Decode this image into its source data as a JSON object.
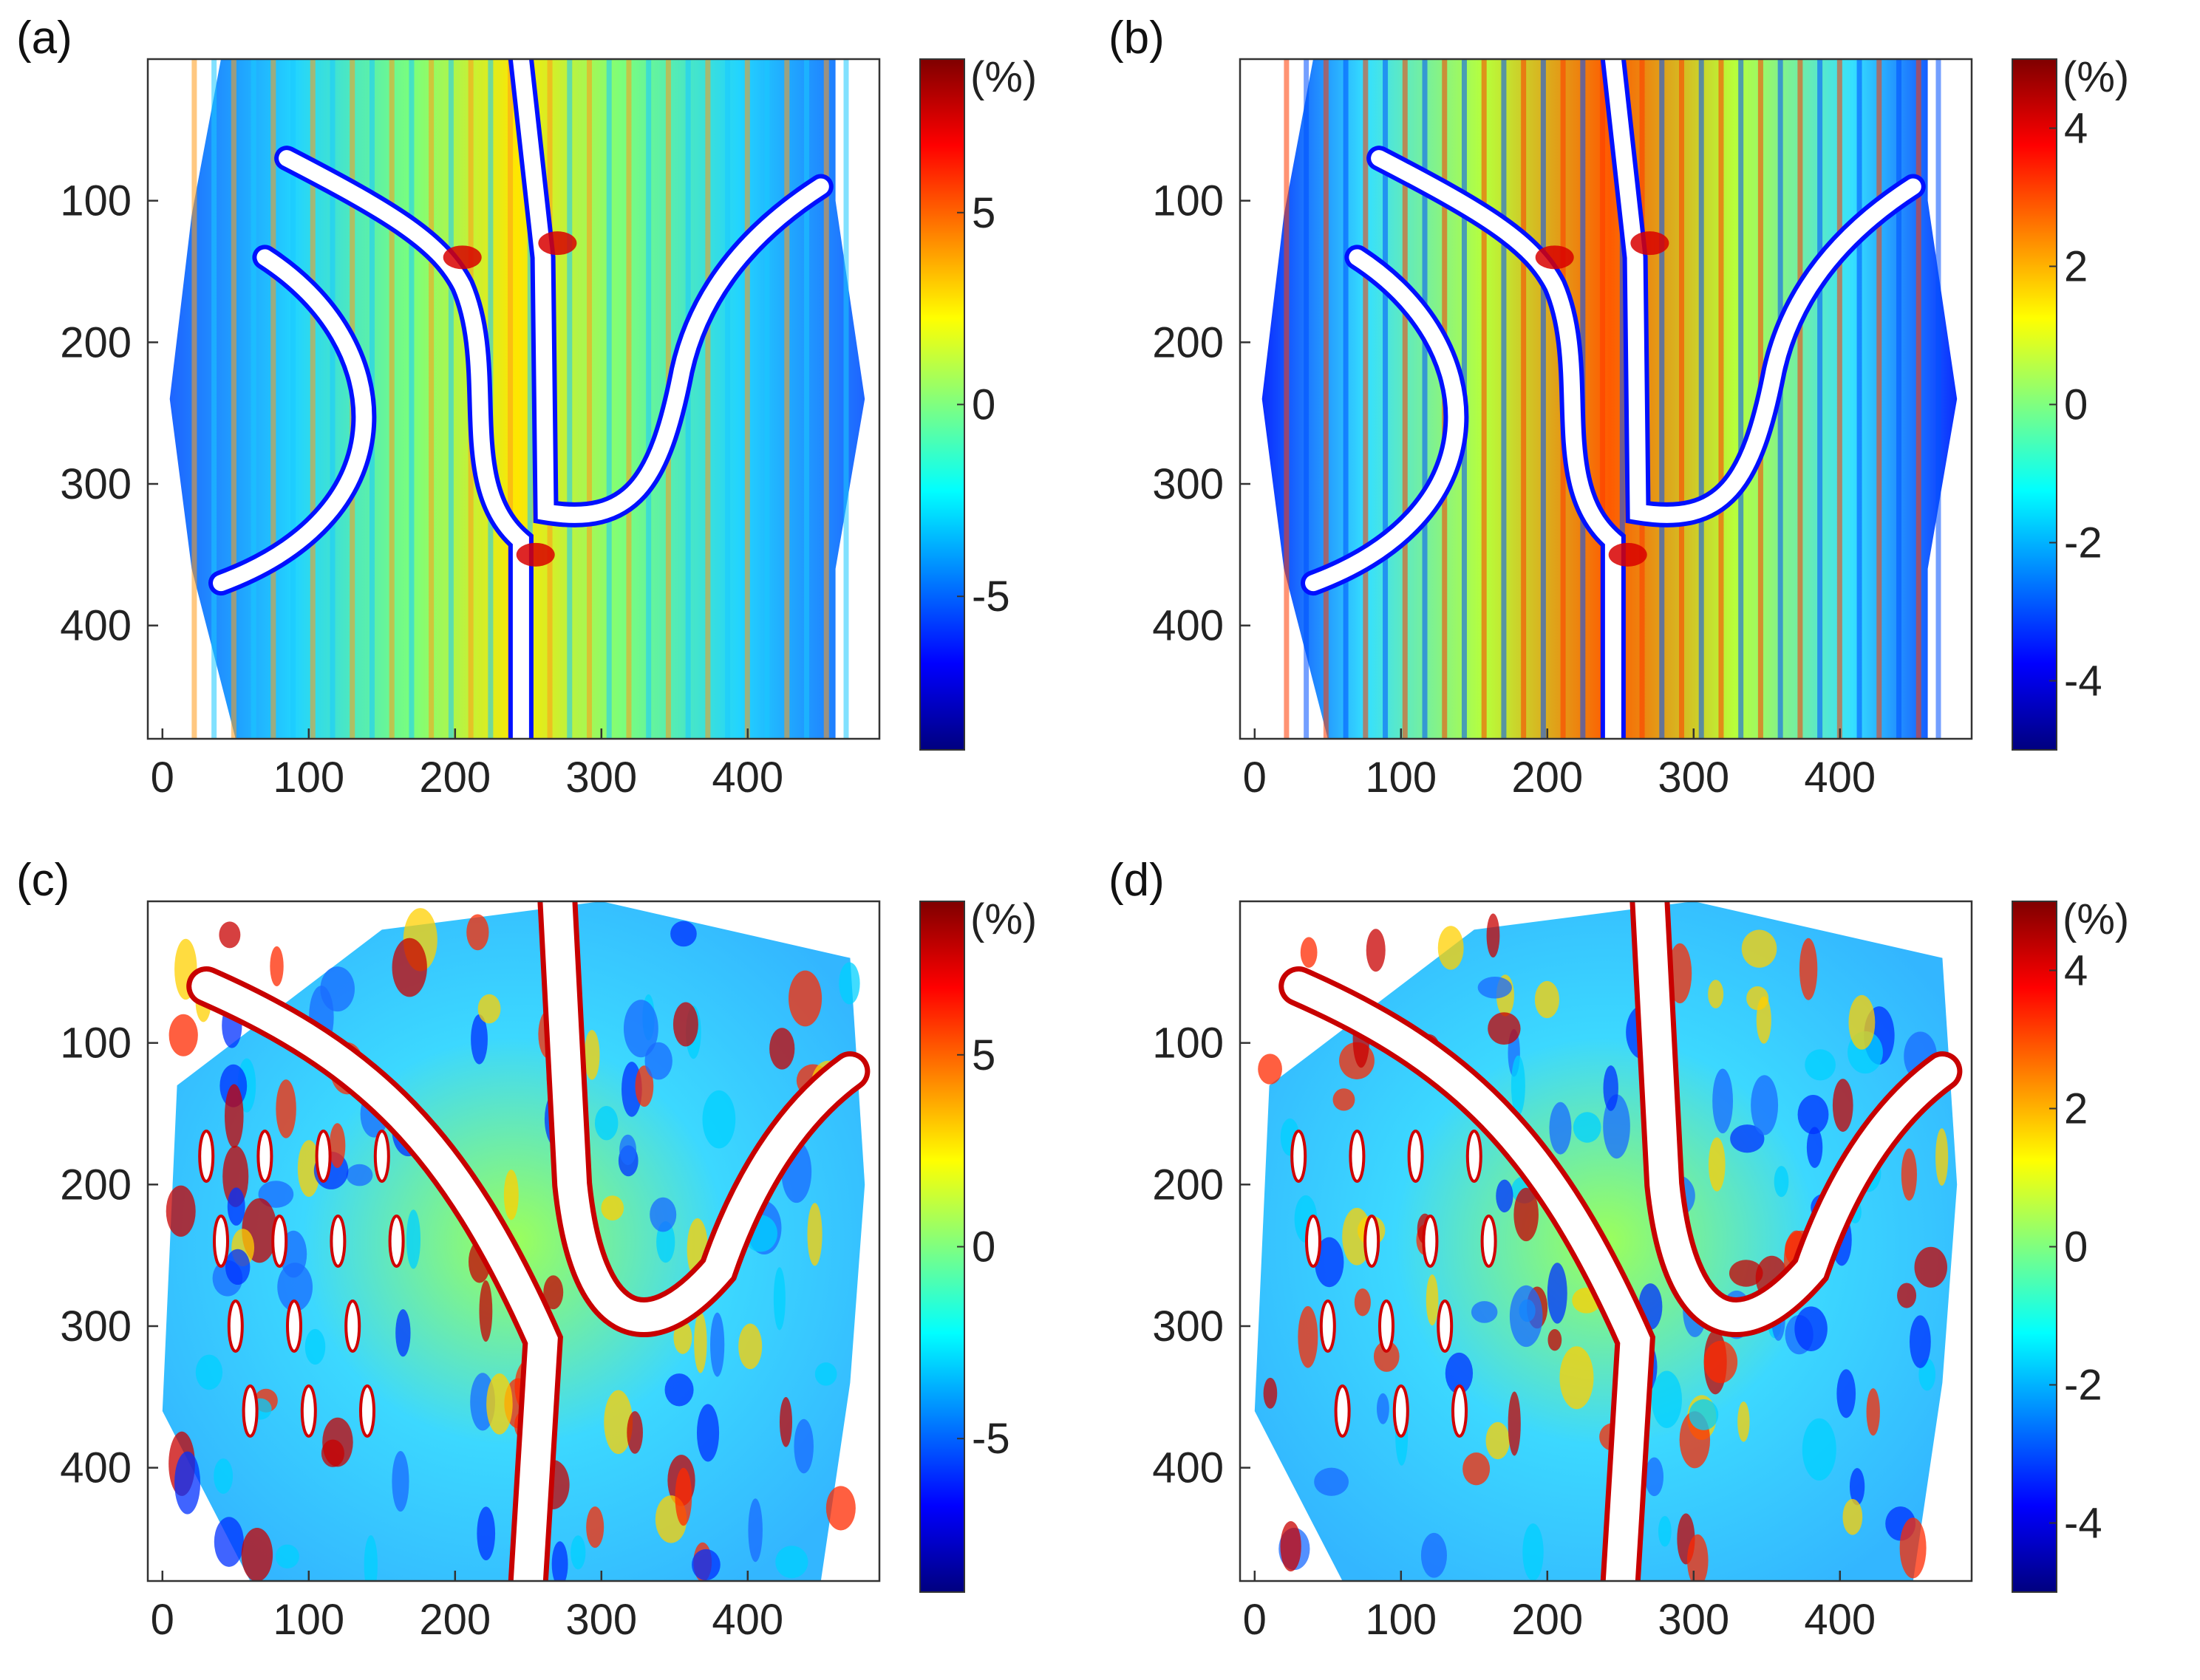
{
  "chart_data": [
    {
      "type": "heatmap",
      "panel_label": "(a)",
      "colorbar_unit": "(%)",
      "xticks": [
        0,
        100,
        200,
        300,
        400
      ],
      "yticks": [
        100,
        200,
        300,
        400
      ],
      "xlim": [
        -10,
        490
      ],
      "ylim": [
        480,
        0
      ],
      "y_reversed": true,
      "colorbar_ticks": [
        5,
        0,
        -5
      ],
      "clim": [
        -9,
        9
      ],
      "colormap": "jet",
      "grid": false
    },
    {
      "type": "heatmap",
      "panel_label": "(b)",
      "colorbar_unit": "(%)",
      "xticks": [
        0,
        100,
        200,
        300,
        400
      ],
      "yticks": [
        100,
        200,
        300,
        400
      ],
      "xlim": [
        -10,
        490
      ],
      "ylim": [
        480,
        0
      ],
      "y_reversed": true,
      "colorbar_ticks": [
        4,
        2,
        0,
        -2,
        -4
      ],
      "clim": [
        -5,
        5
      ],
      "colormap": "jet",
      "grid": false
    },
    {
      "type": "heatmap",
      "panel_label": "(c)",
      "colorbar_unit": "(%)",
      "xticks": [
        0,
        100,
        200,
        300,
        400
      ],
      "yticks": [
        100,
        200,
        300,
        400
      ],
      "xlim": [
        -10,
        490
      ],
      "ylim": [
        480,
        0
      ],
      "y_reversed": true,
      "colorbar_ticks": [
        5,
        0,
        -5
      ],
      "clim": [
        -9,
        9
      ],
      "colormap": "jet",
      "grid": false
    },
    {
      "type": "heatmap",
      "panel_label": "(d)",
      "colorbar_unit": "(%)",
      "xticks": [
        0,
        100,
        200,
        300,
        400
      ],
      "yticks": [
        100,
        200,
        300,
        400
      ],
      "xlim": [
        -10,
        490
      ],
      "ylim": [
        480,
        0
      ],
      "y_reversed": true,
      "colorbar_ticks": [
        4,
        2,
        0,
        -2,
        -4
      ],
      "clim": [
        -5,
        5
      ],
      "colormap": "jet",
      "grid": false
    }
  ]
}
